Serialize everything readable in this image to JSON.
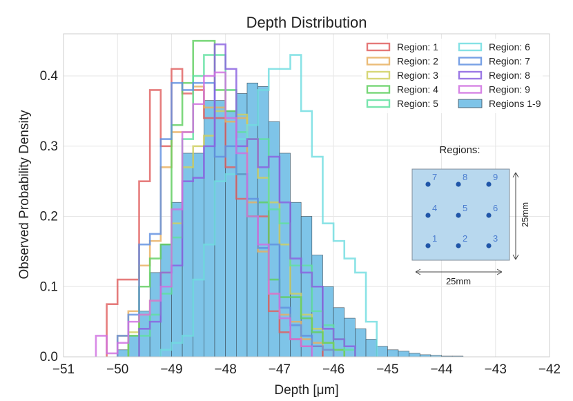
{
  "chart_data": {
    "type": "histogram",
    "title": "Depth Distribution",
    "xlabel": "Depth [μm]",
    "ylabel": "Observed Probability Density",
    "xlim": [
      -51,
      -42
    ],
    "ylim": [
      0,
      0.46
    ],
    "xticks": [
      -51,
      -50,
      -49,
      -48,
      -47,
      -46,
      -45,
      -44,
      -43,
      -42
    ],
    "xtick_labels": [
      "−51",
      "−50",
      "−49",
      "−48",
      "−47",
      "−46",
      "−45",
      "−44",
      "−43",
      "−42"
    ],
    "yticks": [
      0.0,
      0.1,
      0.2,
      0.3,
      0.4
    ],
    "ytick_labels": [
      "0.0",
      "0.1",
      "0.2",
      "0.3",
      "0.4"
    ],
    "grid": true,
    "bin_width": 0.2,
    "combined": {
      "name": "Regions 1-9",
      "color": "#7ec4e8",
      "edge_color": "#3a4a55",
      "x": [
        -50.0,
        -49.8,
        -49.6,
        -49.4,
        -49.2,
        -49.0,
        -48.8,
        -48.6,
        -48.4,
        -48.2,
        -48.0,
        -47.8,
        -47.6,
        -47.4,
        -47.2,
        -47.0,
        -46.8,
        -46.6,
        -46.4,
        -46.2,
        -46.0,
        -45.8,
        -45.6,
        -45.4,
        -45.2,
        -45.0,
        -44.8,
        -44.6,
        -44.4,
        -44.2,
        -44.0,
        -43.8
      ],
      "values": [
        0.01,
        0.03,
        0.065,
        0.12,
        0.16,
        0.22,
        0.29,
        0.29,
        0.365,
        0.365,
        0.35,
        0.375,
        0.39,
        0.385,
        0.335,
        0.29,
        0.22,
        0.2,
        0.145,
        0.1,
        0.07,
        0.055,
        0.04,
        0.025,
        0.015,
        0.01,
        0.008,
        0.005,
        0.003,
        0.002,
        0.001,
        0.001
      ]
    },
    "series": [
      {
        "name": "Region: 1",
        "color": "#e06060",
        "start": -50.2,
        "values": [
          0.075,
          0.11,
          0.11,
          0.25,
          0.38,
          0.3,
          0.41,
          0.375,
          0.38,
          0.34,
          0.34,
          0.27,
          0.225,
          0.2,
          0.2,
          0.065,
          0.035,
          0.025,
          0.015,
          0.015
        ]
      },
      {
        "name": "Region: 2",
        "color": "#e8b060",
        "start": -50.0,
        "values": [
          0.03,
          0.065,
          0.13,
          0.165,
          0.27,
          0.32,
          0.32,
          0.385,
          0.355,
          0.355,
          0.335,
          0.34,
          0.22,
          0.15,
          0.09,
          0.06,
          0.05,
          0.025,
          0.02,
          0.01
        ]
      },
      {
        "name": "Region: 3",
        "color": "#d0d060",
        "start": -49.8,
        "values": [
          0.035,
          0.06,
          0.08,
          0.12,
          0.19,
          0.27,
          0.3,
          0.315,
          0.35,
          0.38,
          0.345,
          0.31,
          0.255,
          0.22,
          0.16,
          0.09,
          0.06,
          0.04,
          0.02,
          0.01
        ]
      },
      {
        "name": "Region: 4",
        "color": "#60d060",
        "start": -49.8,
        "values": [
          0.03,
          0.1,
          0.14,
          0.16,
          0.33,
          0.39,
          0.45,
          0.45,
          0.38,
          0.35,
          0.26,
          0.2,
          0.22,
          0.11,
          0.085,
          0.085,
          0.055,
          0.035,
          0.02,
          0.01
        ]
      },
      {
        "name": "Region: 5",
        "color": "#60e0a0",
        "start": -49.6,
        "values": [
          0.03,
          0.06,
          0.09,
          0.17,
          0.31,
          0.4,
          0.43,
          0.43,
          0.38,
          0.32,
          0.31,
          0.31,
          0.21,
          0.19,
          0.13,
          0.13,
          0.065,
          0.045,
          0.025,
          0.01
        ]
      },
      {
        "name": "Region: 6",
        "color": "#70dde0",
        "start": -49.2,
        "values": [
          0.01,
          0.02,
          0.03,
          0.11,
          0.16,
          0.25,
          0.26,
          0.31,
          0.33,
          0.38,
          0.41,
          0.41,
          0.43,
          0.35,
          0.285,
          0.19,
          0.165,
          0.14,
          0.12,
          0.05
        ]
      },
      {
        "name": "Region: 7",
        "color": "#6090e0",
        "start": -50.0,
        "values": [
          0.03,
          0.06,
          0.16,
          0.175,
          0.31,
          0.39,
          0.38,
          0.39,
          0.39,
          0.285,
          0.3,
          0.26,
          0.225,
          0.155,
          0.16,
          0.07,
          0.045,
          0.03,
          0.015,
          0.01
        ]
      },
      {
        "name": "Region: 8",
        "color": "#8a60e0",
        "start": -49.6,
        "values": [
          0.04,
          0.05,
          0.12,
          0.13,
          0.25,
          0.255,
          0.3,
          0.445,
          0.41,
          0.3,
          0.31,
          0.27,
          0.285,
          0.22,
          0.14,
          0.12,
          0.1,
          0.04,
          0.025,
          0.015
        ]
      },
      {
        "name": "Region: 9",
        "color": "#d070e0",
        "start": -50.4,
        "values": [
          0.03,
          0.005,
          0.02,
          0.05,
          0.06,
          0.08,
          0.1,
          0.21,
          0.32,
          0.36,
          0.4,
          0.405,
          0.34,
          0.29,
          0.2,
          0.16,
          0.09,
          0.055,
          0.025,
          0.015
        ]
      }
    ],
    "legend": {
      "location": "top-right",
      "entries": [
        "Region: 1",
        "Region: 2",
        "Region: 3",
        "Region: 4",
        "Region: 5",
        "Region: 6",
        "Region: 7",
        "Region: 8",
        "Region: 9",
        "Regions 1-9"
      ]
    },
    "inset": {
      "title": "Regions:",
      "width_label": "25mm",
      "height_label": "25mm",
      "fill_color": "#b8d8ee",
      "dot_color": "#1f55a8",
      "label_color": "#4a7ccf",
      "grid_rows": [
        [
          "7",
          "8",
          "9"
        ],
        [
          "4",
          "5",
          "6"
        ],
        [
          "1",
          "2",
          "3"
        ]
      ]
    }
  }
}
